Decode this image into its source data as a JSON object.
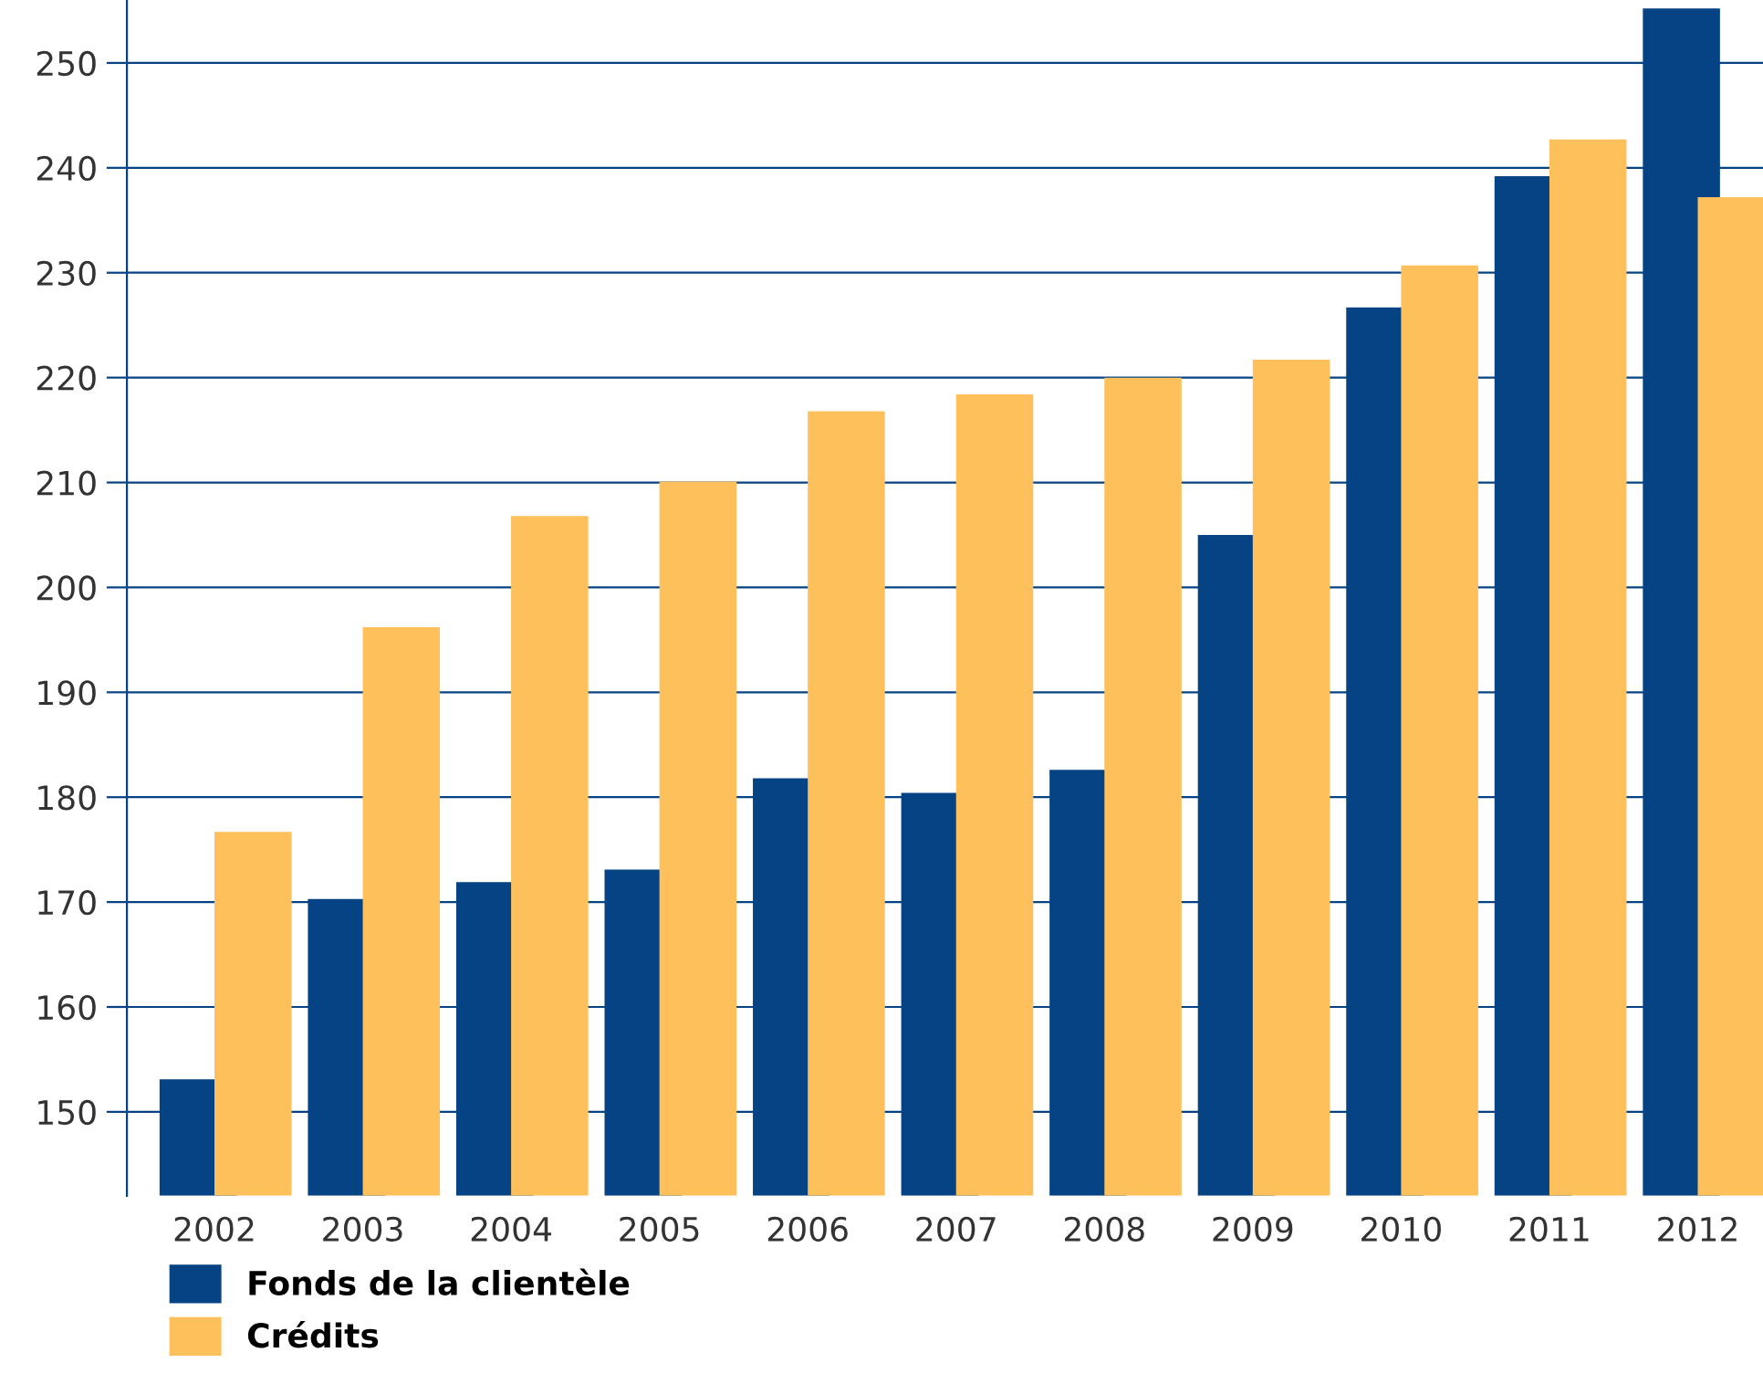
{
  "chart_data": {
    "type": "bar",
    "categories": [
      "2002",
      "2003",
      "2004",
      "2005",
      "2006",
      "2007",
      "2008",
      "2009",
      "2010",
      "2011",
      "2012"
    ],
    "series": [
      {
        "name": "Fonds de la clientèle",
        "color": "#064385",
        "values": [
          153.1,
          170.3,
          171.9,
          173.1,
          181.8,
          180.4,
          182.6,
          205.0,
          226.7,
          239.2,
          255.2
        ]
      },
      {
        "name": "Crédits",
        "color": "#fdc05a",
        "values": [
          176.7,
          196.2,
          206.8,
          210.1,
          216.8,
          218.4,
          220.0,
          221.7,
          230.7,
          242.7,
          237.2
        ]
      }
    ],
    "ylim": [
      142,
      256
    ],
    "yticks": [
      150,
      160,
      170,
      180,
      190,
      200,
      210,
      220,
      230,
      240,
      250
    ],
    "grid": "y",
    "legend": "bottom left"
  }
}
